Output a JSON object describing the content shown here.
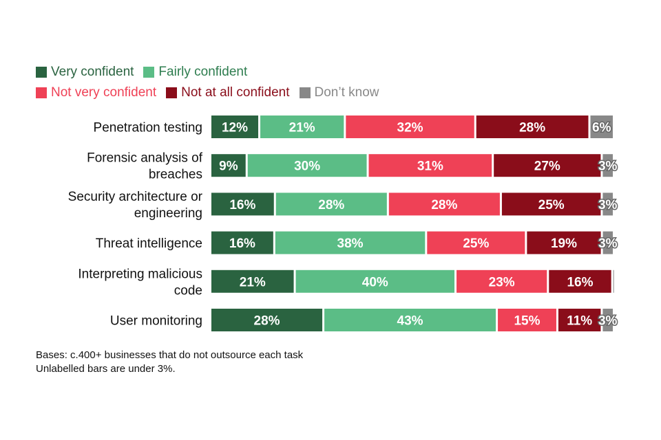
{
  "chart_data": {
    "type": "bar",
    "orientation": "horizontal",
    "stacked": true,
    "categories": [
      [
        "Penetration testing"
      ],
      [
        "Forensic analysis of",
        "breaches"
      ],
      [
        "Security architecture or",
        "engineering"
      ],
      [
        "Threat intelligence"
      ],
      [
        "Interpreting malicious",
        "code"
      ],
      [
        "User monitoring"
      ]
    ],
    "series": [
      {
        "name": "Very confident",
        "color": "#2a6340",
        "values": [
          12,
          9,
          16,
          16,
          21,
          28
        ],
        "labels": [
          "12%",
          "9%",
          "16%",
          "16%",
          "21%",
          "28%"
        ]
      },
      {
        "name": "Fairly confident",
        "color": "#5bbd86",
        "values": [
          21,
          30,
          28,
          38,
          40,
          43
        ],
        "labels": [
          "21%",
          "30%",
          "28%",
          "38%",
          "40%",
          "43%"
        ]
      },
      {
        "name": "Not very confident",
        "color": "#ef4156",
        "values": [
          32,
          31,
          28,
          25,
          23,
          15
        ],
        "labels": [
          "32%",
          "31%",
          "28%",
          "25%",
          "23%",
          "15%"
        ]
      },
      {
        "name": "Not at all confident",
        "color": "#8a0d1a",
        "values": [
          28,
          27,
          25,
          19,
          16,
          11
        ],
        "labels": [
          "28%",
          "27%",
          "25%",
          "19%",
          "16%",
          "11%"
        ]
      },
      {
        "name": "Don’t know",
        "color": "#888888",
        "values": [
          6,
          3,
          3,
          3,
          0.4,
          3
        ],
        "labels": [
          "6%",
          "3%",
          "3%",
          "3%",
          "",
          "3%"
        ]
      }
    ],
    "legend_rows": [
      [
        0,
        1
      ],
      [
        2,
        3,
        4
      ]
    ],
    "legend_text_colors": [
      "#2a6340",
      "#2e7d4f",
      "#ef4156",
      "#8a0d1a",
      "#888888"
    ],
    "xlim": [
      0,
      100
    ],
    "grid": false,
    "legend_position": "top-left"
  },
  "notes": {
    "bases": "Bases: c.400+ businesses that do not outsource each task",
    "unlabelled": "Unlabelled bars are under 3%."
  }
}
